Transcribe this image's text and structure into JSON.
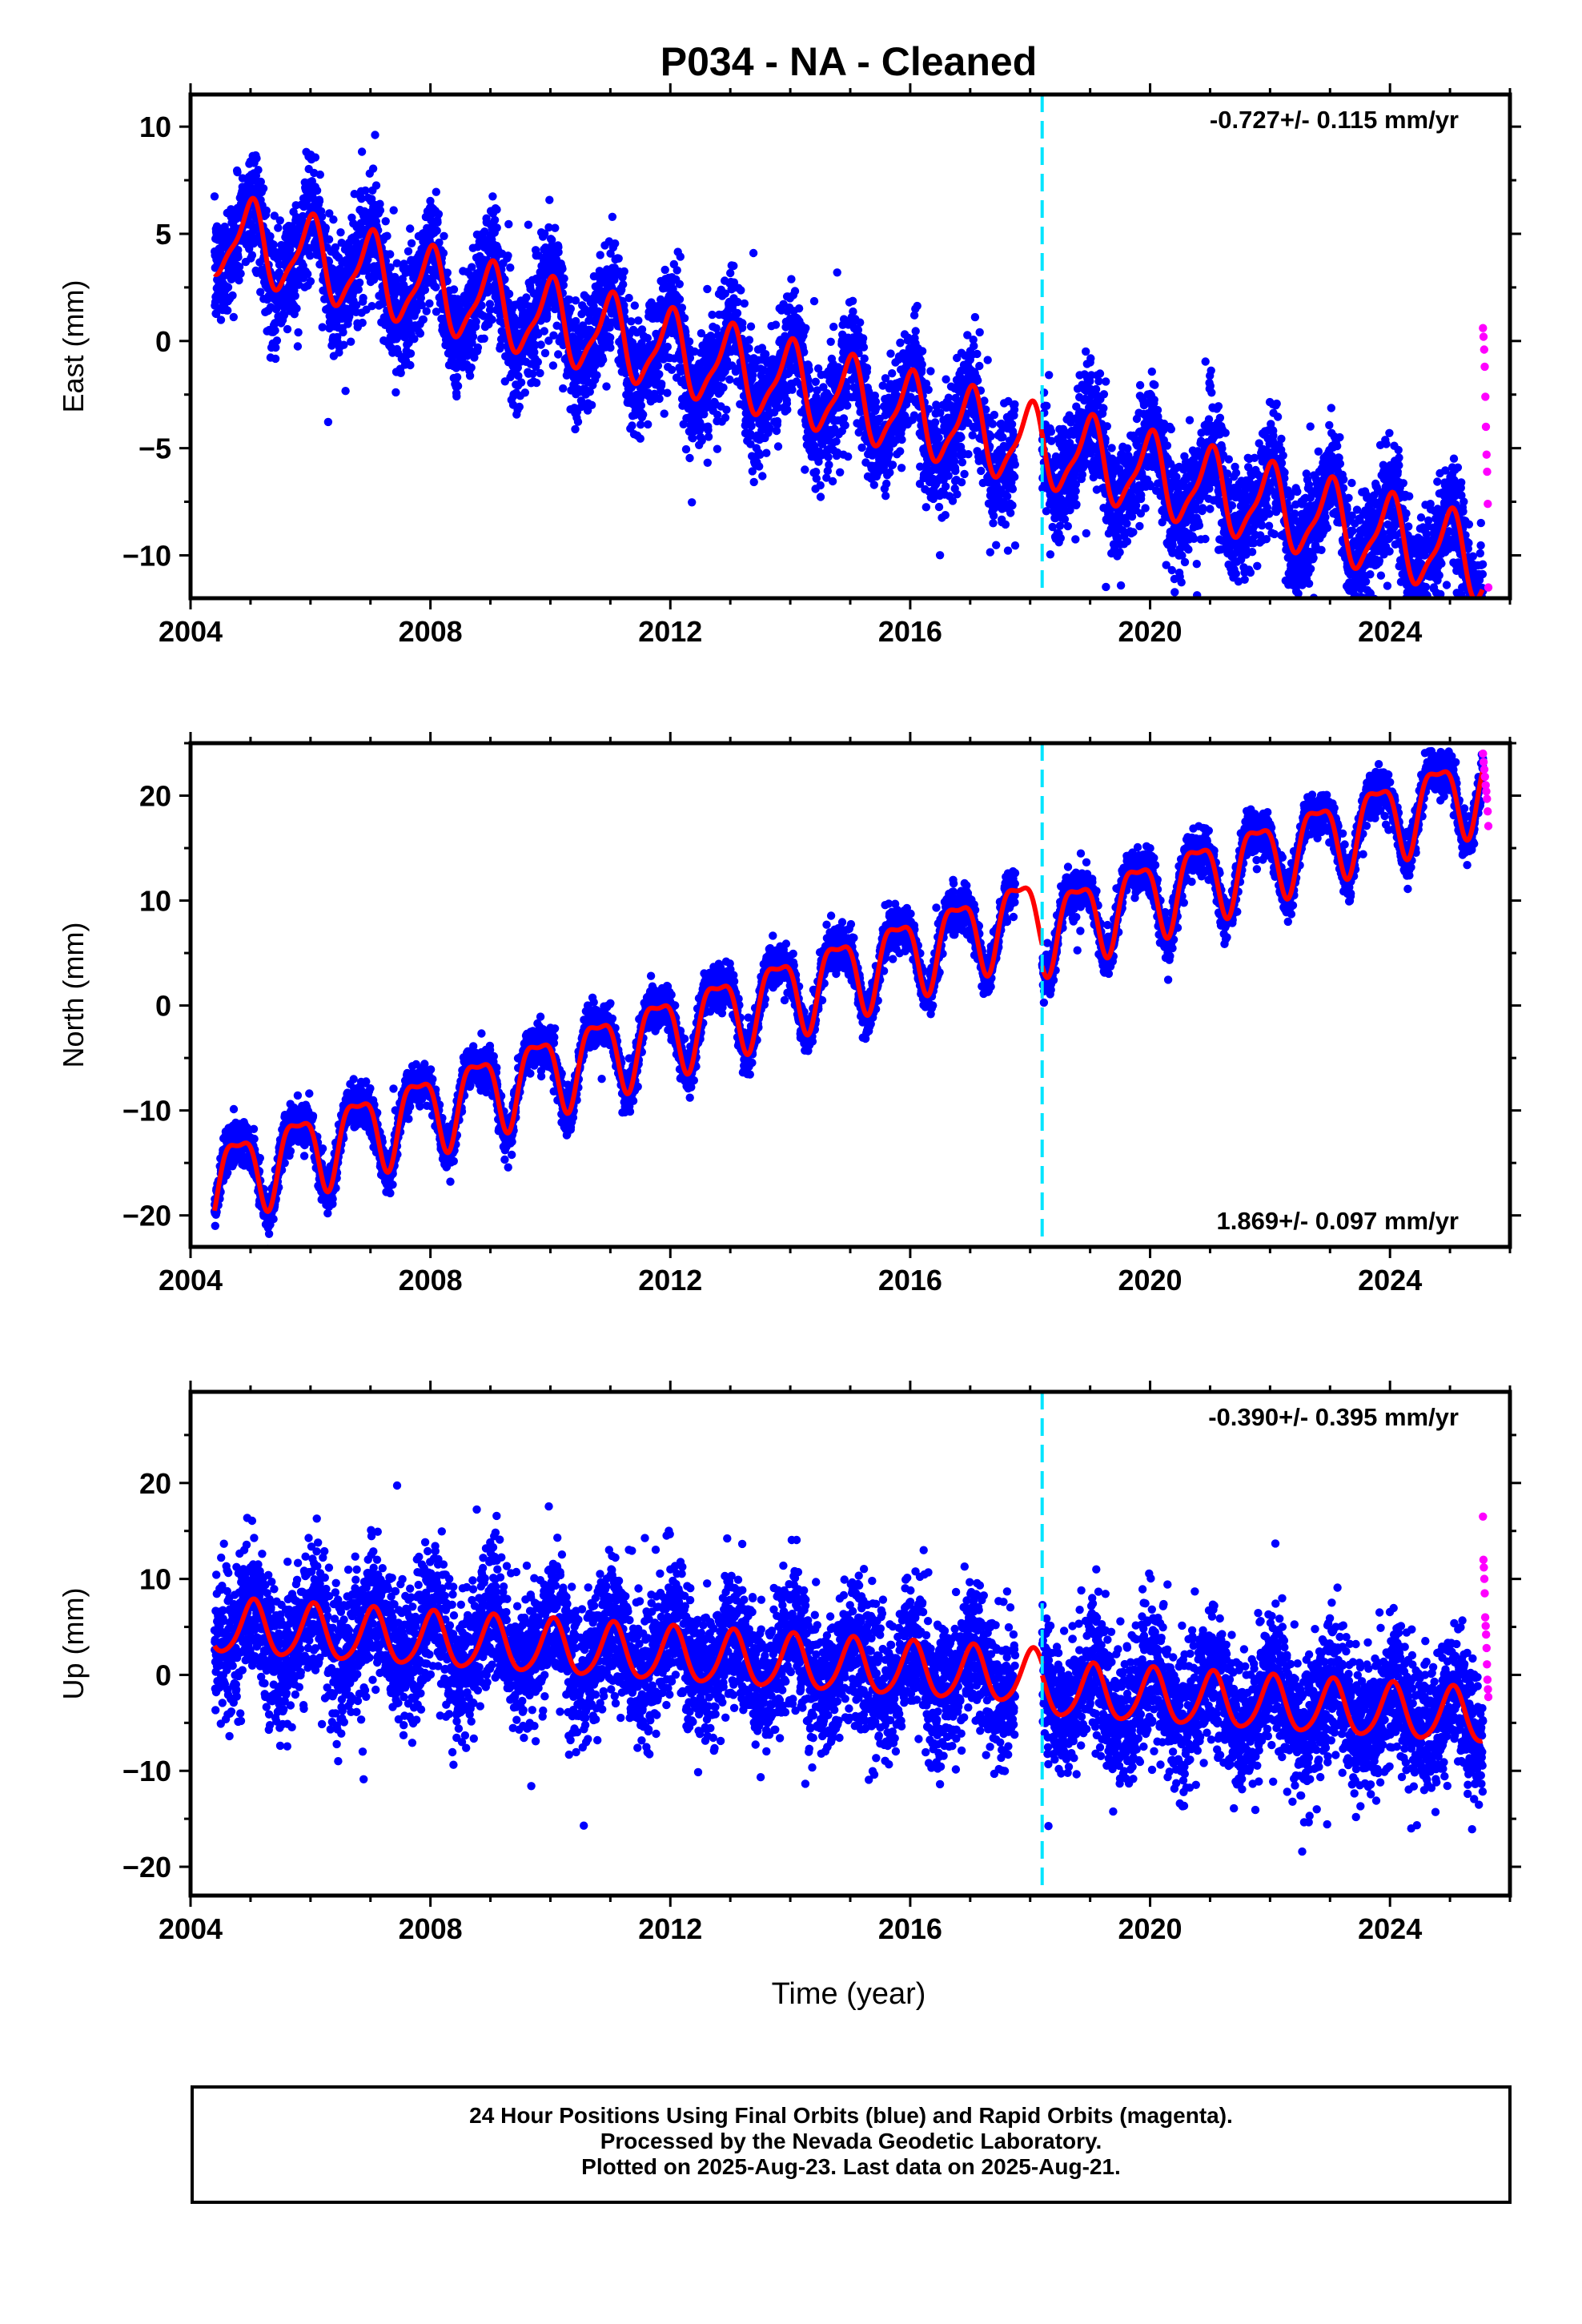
{
  "title": "P034  - NA - Cleaned",
  "xlabel": "Time (year)",
  "colors": {
    "final_orbits": "#0000ff",
    "rapid_orbits": "#ff00ff",
    "model": "#ff0000",
    "event_line": "#00e5ff"
  },
  "caption": {
    "line1": "24 Hour Positions Using Final Orbits (blue) and Rapid Orbits (magenta).",
    "line2": "Processed by the Nevada Geodetic Laboratory.",
    "line3": "Plotted on 2025-Aug-23. Last data on 2025-Aug-21."
  },
  "chart_data": [
    {
      "type": "scatter",
      "name": "east",
      "ylabel": "East (mm)",
      "rate_label": "-0.727+/- 0.115 mm/yr",
      "rate_position": "top-right",
      "xlim": [
        2004.0,
        2026.0
      ],
      "ylim": [
        -12.0,
        11.5
      ],
      "xticks": [
        2004,
        2008,
        2012,
        2016,
        2020,
        2024
      ],
      "yticks": [
        10,
        5,
        0,
        -5,
        -10
      ],
      "event_line_x": 2018.2,
      "data_start": 2004.4,
      "final_end": 2025.55,
      "rapid_end": 2025.64,
      "model": {
        "offset_pre": 5.0,
        "offset_post": 5.1,
        "rate": -0.727,
        "annual_amplitude": 1.8,
        "annual_phase": 1.6,
        "semiannual_amplitude": 0.5,
        "semiannual_phase": 0.4,
        "scatter": 1.3
      },
      "rapid_points": [
        0.6,
        0.2,
        -0.4,
        -1.2,
        -2.6,
        -4.0,
        -5.3,
        -6.1,
        -7.6,
        -11.5
      ]
    },
    {
      "type": "scatter",
      "name": "north",
      "ylabel": "North (mm)",
      "rate_label": "1.869+/- 0.097 mm/yr",
      "rate_position": "bottom-right",
      "xlim": [
        2004.0,
        2026.0
      ],
      "ylim": [
        -23.0,
        25.0
      ],
      "xticks": [
        2004,
        2008,
        2012,
        2016,
        2020,
        2024
      ],
      "yticks": [
        20,
        10,
        0,
        -10,
        -20
      ],
      "event_line_x": 2018.2,
      "data_start": 2004.4,
      "final_end": 2025.55,
      "rapid_end": 2025.64,
      "model": {
        "offset_pre": -16.5,
        "offset_post": -18.5,
        "rate": 1.869,
        "annual_amplitude": 3.6,
        "annual_phase": 2.9,
        "semiannual_amplitude": 1.2,
        "semiannual_phase": 1.0,
        "scatter": 1.0
      },
      "rapid_points": [
        24.0,
        23.2,
        22.5,
        21.8,
        21.0,
        20.4,
        19.7,
        18.5,
        17.1
      ]
    },
    {
      "type": "scatter",
      "name": "up",
      "ylabel": "Up (mm)",
      "rate_label": "-0.390+/- 0.395 mm/yr",
      "rate_position": "top-right",
      "xlim": [
        2004.0,
        2026.0
      ],
      "ylim": [
        -23.0,
        29.5
      ],
      "xticks": [
        2004,
        2008,
        2012,
        2016,
        2020,
        2024
      ],
      "yticks": [
        20,
        10,
        0,
        -10,
        -20
      ],
      "event_line_x": 2018.2,
      "data_start": 2004.4,
      "final_end": 2025.55,
      "rapid_end": 2025.64,
      "model": {
        "offset_pre": 5.0,
        "offset_post": 3.8,
        "rate": -0.39,
        "annual_amplitude": 2.8,
        "annual_phase": 1.3,
        "semiannual_amplitude": 0.4,
        "semiannual_phase": 0.6,
        "scatter": 3.6
      },
      "rapid_points": [
        16.5,
        12.0,
        11.2,
        10.0,
        8.5,
        6.0,
        5.1,
        4.2,
        2.8,
        1.1,
        -0.5,
        -1.5,
        -2.3
      ]
    }
  ]
}
